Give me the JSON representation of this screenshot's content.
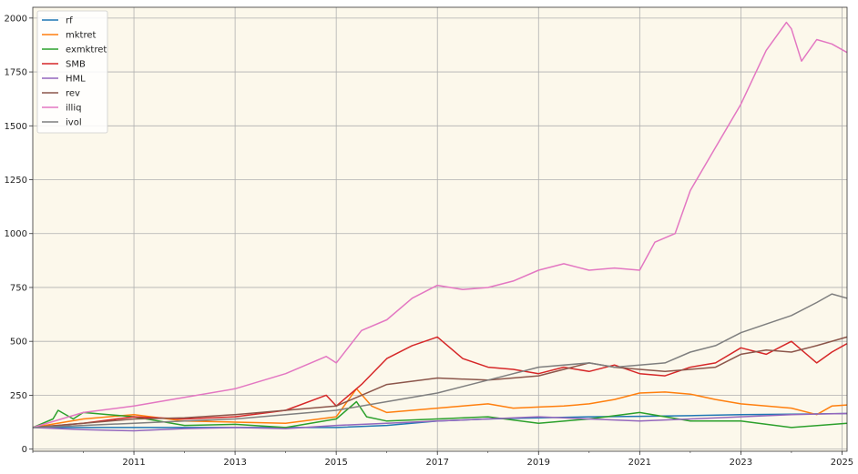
{
  "chart_data": {
    "type": "line",
    "title": "",
    "xlabel": "",
    "ylabel": "",
    "x_range": [
      2009.0,
      2025.1
    ],
    "ylim": [
      -10,
      2050
    ],
    "x_ticks": [
      {
        "value": 2011,
        "label": "2011"
      },
      {
        "value": 2013,
        "label": "2013"
      },
      {
        "value": 2015,
        "label": "2015"
      },
      {
        "value": 2017,
        "label": "2017"
      },
      {
        "value": 2019,
        "label": "2019"
      },
      {
        "value": 2021,
        "label": "2021"
      },
      {
        "value": 2023,
        "label": "2023"
      },
      {
        "value": 2025,
        "label": "2025"
      }
    ],
    "y_ticks": [
      {
        "value": 0,
        "label": "0"
      },
      {
        "value": 250,
        "label": "250"
      },
      {
        "value": 500,
        "label": "500"
      },
      {
        "value": 750,
        "label": "750"
      },
      {
        "value": 1000,
        "label": "1000"
      },
      {
        "value": 1250,
        "label": "1250"
      },
      {
        "value": 1500,
        "label": "1500"
      },
      {
        "value": 1750,
        "label": "1750"
      },
      {
        "value": 2000,
        "label": "2000"
      }
    ],
    "grid": true,
    "legend_position": "top-left",
    "background_color": "#fcf8eb",
    "series": [
      {
        "name": "rf",
        "color": "#1f77b4",
        "x": [
          2009.0,
          2011.0,
          2013.0,
          2015.0,
          2016.0,
          2017.0,
          2018.0,
          2019.0,
          2020.0,
          2021.0,
          2022.0,
          2023.0,
          2024.0,
          2025.1
        ],
        "y": [
          100,
          100,
          100,
          100,
          110,
          130,
          140,
          145,
          150,
          152,
          155,
          160,
          162,
          165
        ]
      },
      {
        "name": "mktret",
        "color": "#ff7f0e",
        "x": [
          2009.0,
          2010.0,
          2011.0,
          2012.0,
          2013.0,
          2014.0,
          2015.0,
          2015.4,
          2015.7,
          2016.0,
          2016.5,
          2017.0,
          2017.5,
          2018.0,
          2018.5,
          2019.0,
          2019.5,
          2020.0,
          2020.5,
          2021.0,
          2021.5,
          2022.0,
          2022.5,
          2023.0,
          2023.5,
          2024.0,
          2024.5,
          2024.8,
          2025.1
        ],
        "y": [
          100,
          140,
          160,
          130,
          125,
          120,
          150,
          280,
          200,
          170,
          180,
          190,
          200,
          210,
          190,
          195,
          200,
          210,
          230,
          260,
          265,
          255,
          230,
          210,
          200,
          190,
          160,
          200,
          205
        ]
      },
      {
        "name": "exmktret",
        "color": "#2ca02c",
        "x": [
          2009.0,
          2009.4,
          2009.5,
          2009.8,
          2010.0,
          2011.0,
          2012.0,
          2013.0,
          2014.0,
          2015.0,
          2015.4,
          2015.6,
          2016.0,
          2017.0,
          2018.0,
          2019.0,
          2020.0,
          2021.0,
          2022.0,
          2023.0,
          2024.0,
          2025.1
        ],
        "y": [
          100,
          140,
          180,
          140,
          170,
          150,
          110,
          115,
          100,
          140,
          220,
          150,
          130,
          140,
          150,
          120,
          140,
          170,
          130,
          130,
          100,
          120
        ]
      },
      {
        "name": "SMB",
        "color": "#d62728",
        "x": [
          2009.0,
          2010.0,
          2011.0,
          2012.0,
          2013.0,
          2014.0,
          2014.8,
          2015.0,
          2015.5,
          2016.0,
          2016.5,
          2017.0,
          2017.5,
          2018.0,
          2018.5,
          2019.0,
          2019.5,
          2020.0,
          2020.5,
          2021.0,
          2021.5,
          2022.0,
          2022.5,
          2023.0,
          2023.5,
          2024.0,
          2024.5,
          2024.8,
          2025.1
        ],
        "y": [
          100,
          120,
          150,
          140,
          150,
          180,
          250,
          200,
          300,
          420,
          480,
          520,
          420,
          380,
          370,
          350,
          380,
          360,
          390,
          350,
          340,
          380,
          400,
          470,
          440,
          500,
          400,
          450,
          490
        ]
      },
      {
        "name": "HML",
        "color": "#9467bd",
        "x": [
          2009.0,
          2010.0,
          2011.0,
          2012.0,
          2013.0,
          2014.0,
          2015.0,
          2016.0,
          2017.0,
          2018.0,
          2019.0,
          2020.0,
          2021.0,
          2022.0,
          2023.0,
          2024.0,
          2025.1
        ],
        "y": [
          100,
          90,
          85,
          95,
          100,
          95,
          110,
          120,
          130,
          140,
          150,
          140,
          130,
          140,
          150,
          160,
          165
        ]
      },
      {
        "name": "rev",
        "color": "#8c564b",
        "x": [
          2009.0,
          2010.0,
          2011.0,
          2012.0,
          2013.0,
          2014.0,
          2015.0,
          2016.0,
          2017.0,
          2018.0,
          2019.0,
          2019.5,
          2020.0,
          2020.5,
          2021.0,
          2021.5,
          2022.0,
          2022.5,
          2023.0,
          2023.5,
          2024.0,
          2024.5,
          2025.1
        ],
        "y": [
          100,
          120,
          140,
          145,
          160,
          180,
          200,
          300,
          330,
          320,
          340,
          370,
          400,
          380,
          370,
          360,
          370,
          380,
          440,
          460,
          450,
          480,
          520
        ]
      },
      {
        "name": "illiq",
        "color": "#e377c2",
        "x": [
          2009.0,
          2010.0,
          2011.0,
          2012.0,
          2013.0,
          2014.0,
          2014.8,
          2015.0,
          2015.5,
          2016.0,
          2016.5,
          2017.0,
          2017.5,
          2018.0,
          2018.5,
          2019.0,
          2019.5,
          2020.0,
          2020.5,
          2021.0,
          2021.3,
          2021.7,
          2022.0,
          2022.5,
          2023.0,
          2023.5,
          2023.9,
          2024.0,
          2024.2,
          2024.5,
          2024.8,
          2025.1
        ],
        "y": [
          100,
          170,
          200,
          240,
          280,
          350,
          430,
          400,
          550,
          600,
          700,
          760,
          740,
          750,
          780,
          830,
          860,
          830,
          840,
          830,
          960,
          1000,
          1200,
          1400,
          1600,
          1850,
          1980,
          1950,
          1800,
          1900,
          1880,
          1840
        ]
      },
      {
        "name": "ivol",
        "color": "#7f7f7f",
        "x": [
          2009.0,
          2010.0,
          2011.0,
          2012.0,
          2013.0,
          2014.0,
          2015.0,
          2016.0,
          2017.0,
          2018.0,
          2019.0,
          2020.0,
          2020.5,
          2021.0,
          2021.5,
          2022.0,
          2022.5,
          2023.0,
          2023.5,
          2024.0,
          2024.5,
          2024.8,
          2025.1
        ],
        "y": [
          100,
          110,
          120,
          130,
          140,
          160,
          180,
          220,
          260,
          320,
          380,
          400,
          380,
          390,
          400,
          450,
          480,
          540,
          580,
          620,
          680,
          720,
          700
        ]
      }
    ]
  }
}
